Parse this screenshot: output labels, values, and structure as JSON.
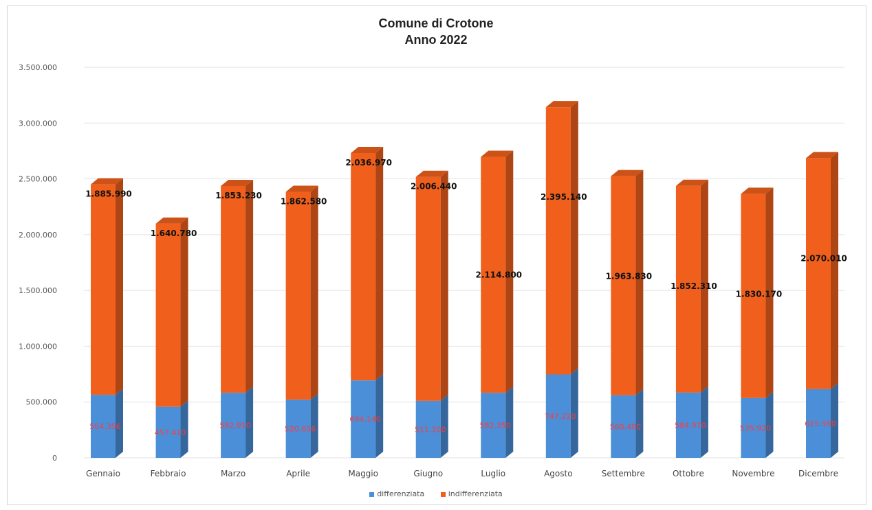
{
  "chart_data": {
    "type": "bar",
    "stacked": true,
    "style": "3d",
    "title": "Comune di Crotone",
    "subtitle": "Anno 2022",
    "categories": [
      "Gennaio",
      "Febbraio",
      "Marzo",
      "Aprile",
      "Maggio",
      "Giugno",
      "Luglio",
      "Agosto",
      "Settembre",
      "Ottobre",
      "Novembre",
      "Dicembre"
    ],
    "series": [
      {
        "name": "differenziata",
        "color": "#4a8fd8",
        "values": [
          564356,
          457410,
          582910,
          520656,
          694140,
          511100,
          582350,
          747220,
          560400,
          584970,
          535920,
          615590
        ],
        "labels": [
          "564.356",
          "457.410",
          "582.910",
          "520.656",
          "694.140",
          "511.100",
          "582.350",
          "747.220",
          "560.400",
          "584.970",
          "535.920",
          "615.590"
        ]
      },
      {
        "name": "indifferenziata",
        "color": "#f0601c",
        "values": [
          1885990,
          1640780,
          1853230,
          1862580,
          2036970,
          2006440,
          2114800,
          2395140,
          1963830,
          1852310,
          1830170,
          2070010
        ],
        "labels": [
          "1.885.990",
          "1.640.780",
          "1.853.230",
          "1.862.580",
          "2.036.970",
          "2.006.440",
          "2.114.800",
          "2.395.140",
          "1.963.830",
          "1.852.310",
          "1.830.170",
          "2.070.010"
        ]
      }
    ],
    "ylim": [
      0,
      3500000
    ],
    "yticks": [
      0,
      500000,
      1000000,
      1500000,
      2000000,
      2500000,
      3000000,
      3500000
    ],
    "ytick_labels": [
      "0",
      "500.000",
      "1.000.000",
      "1.500.000",
      "2.000.000",
      "2.500.000",
      "3.000.000",
      "3.500.000"
    ],
    "xlabel": "",
    "ylabel": "",
    "grid": true,
    "legend_position": "bottom"
  }
}
